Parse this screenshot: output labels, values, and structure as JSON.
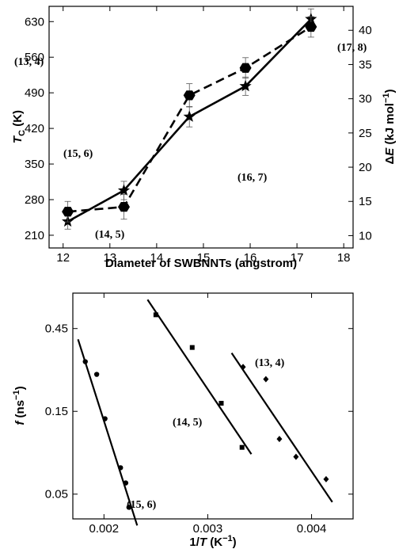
{
  "chart_data": [
    {
      "type": "line",
      "xlabel": "Diameter of SWBNNTs (angstrom)",
      "ylabel": "Tc (K)",
      "ylabel_parts": {
        "main": "T",
        "sub": "C",
        "unit": " (K)"
      },
      "y2label": "ΔE (kJ mol−1)",
      "y2label_parts": {
        "delta": "Δ",
        "main": "E",
        "unit": " (kJ mol",
        "sup": "−1",
        "close": ")"
      },
      "xlim": [
        11.7,
        18.2
      ],
      "ylim": [
        185,
        660
      ],
      "y2lim": [
        8.2,
        43.5
      ],
      "xticks": [
        "12",
        "13",
        "14",
        "15",
        "16",
        "17",
        "18"
      ],
      "yticks": [
        "210",
        "280",
        "350",
        "420",
        "490",
        "560",
        "630"
      ],
      "y2ticks": [
        "10",
        "15",
        "20",
        "25",
        "30",
        "35",
        "40"
      ],
      "series": [
        {
          "marker": "star",
          "line_style": "solid",
          "axis": "left",
          "x": [
            12.1,
            13.3,
            14.7,
            15.9,
            17.3
          ],
          "y": [
            237,
            298,
            443,
            503,
            635
          ],
          "err": [
            15,
            18,
            20,
            18,
            20
          ]
        },
        {
          "marker": "hexagon",
          "line_style": "dashed",
          "axis": "right",
          "x": [
            12.1,
            13.3,
            14.7,
            15.9,
            17.3
          ],
          "y": [
            13.5,
            14.2,
            30.5,
            34.5,
            40.5
          ],
          "err": [
            1.5,
            1.8,
            1.7,
            1.5,
            1.5
          ]
        }
      ],
      "annotations": [
        "(13, 4)",
        "(14, 5)",
        "(15, 6)",
        "(16, 7)",
        "(17, 8)"
      ]
    },
    {
      "type": "scatter",
      "xlabel": "1/T (K−1)",
      "xlabel_parts": {
        "pre": "1/",
        "main": "T",
        "unit": " (K",
        "sup": "−1",
        "close": ")"
      },
      "ylabel": "f (ns−1)",
      "ylabel_parts": {
        "main": "f",
        "unit": " (ns",
        "sup": "−1",
        "close": ")"
      },
      "y_scale": "log",
      "xlim": [
        0.0017,
        0.0044
      ],
      "ylim": [
        0.036,
        0.72
      ],
      "xticks": [
        "0.002",
        "0.003",
        "0.004"
      ],
      "xtick_values": [
        0.002,
        0.003,
        0.004
      ],
      "yticks": [
        "0.05",
        "0.15",
        "0.45"
      ],
      "ytick_values": [
        0.05,
        0.15,
        0.45
      ],
      "series": [
        {
          "label": "(15, 6)",
          "marker": "circle",
          "x": [
            0.00182,
            0.00193,
            0.00201,
            0.00216,
            0.00221,
            0.00224
          ],
          "y": [
            0.29,
            0.245,
            0.136,
            0.071,
            0.058,
            0.042
          ],
          "fit": {
            "x": [
              0.00175,
              0.00232
            ],
            "y": [
              0.39,
              0.033
            ]
          }
        },
        {
          "label": "(14, 5)",
          "marker": "square",
          "x": [
            0.0025,
            0.00285,
            0.00313,
            0.00333
          ],
          "y": [
            0.54,
            0.35,
            0.167,
            0.093
          ],
          "fit": {
            "x": [
              0.00242,
              0.00342
            ],
            "y": [
              0.66,
              0.085
            ]
          }
        },
        {
          "label": "(13, 4)",
          "marker": "diamond",
          "x": [
            0.00334,
            0.00356,
            0.00369,
            0.00385,
            0.00414
          ],
          "y": [
            0.27,
            0.23,
            0.104,
            0.082,
            0.061
          ],
          "fit": {
            "x": [
              0.00323,
              0.0042
            ],
            "y": [
              0.325,
              0.045
            ]
          }
        }
      ]
    }
  ]
}
